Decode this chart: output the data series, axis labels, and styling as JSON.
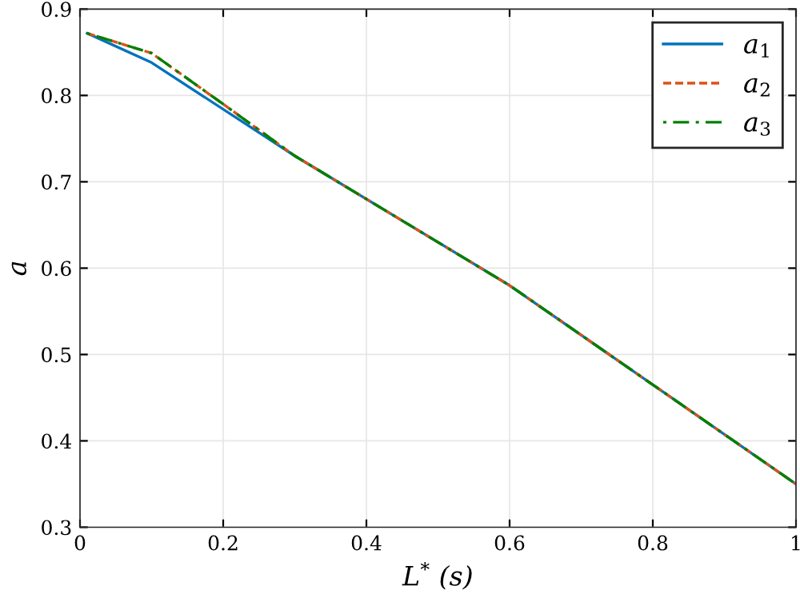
{
  "chart_data": {
    "type": "line",
    "xlabel": "L$^{*}$ (s)",
    "ylabel": "a",
    "xlim": [
      0,
      1
    ],
    "ylim": [
      0.3,
      0.9
    ],
    "xticks": [
      0,
      0.2,
      0.4,
      0.6,
      0.8,
      1
    ],
    "yticks": [
      0.3,
      0.4,
      0.5,
      0.6,
      0.7,
      0.8,
      0.9
    ],
    "grid": true,
    "legend": "top right",
    "series": [
      {
        "name": "a$_{1}$",
        "color": "#0072bd",
        "line_style": "solid",
        "x": [
          0.01,
          0.1,
          0.3,
          0.6,
          1
        ],
        "values": [
          0.872,
          0.838,
          0.73,
          0.58,
          0.35
        ]
      },
      {
        "name": "a$_{2}$",
        "color": "#d95319",
        "line_style": "dashed",
        "x": [
          0.01,
          0.1,
          0.2,
          0.3,
          0.6,
          1
        ],
        "values": [
          0.872,
          0.849,
          0.79,
          0.73,
          0.58,
          0.35
        ]
      },
      {
        "name": "a$_{3}$",
        "color": "#008000",
        "line_style": "dashdot",
        "x": [
          0.01,
          0.1,
          0.2,
          0.3,
          0.6,
          1
        ],
        "values": [
          0.872,
          0.849,
          0.79,
          0.73,
          0.58,
          0.35
        ]
      }
    ]
  }
}
